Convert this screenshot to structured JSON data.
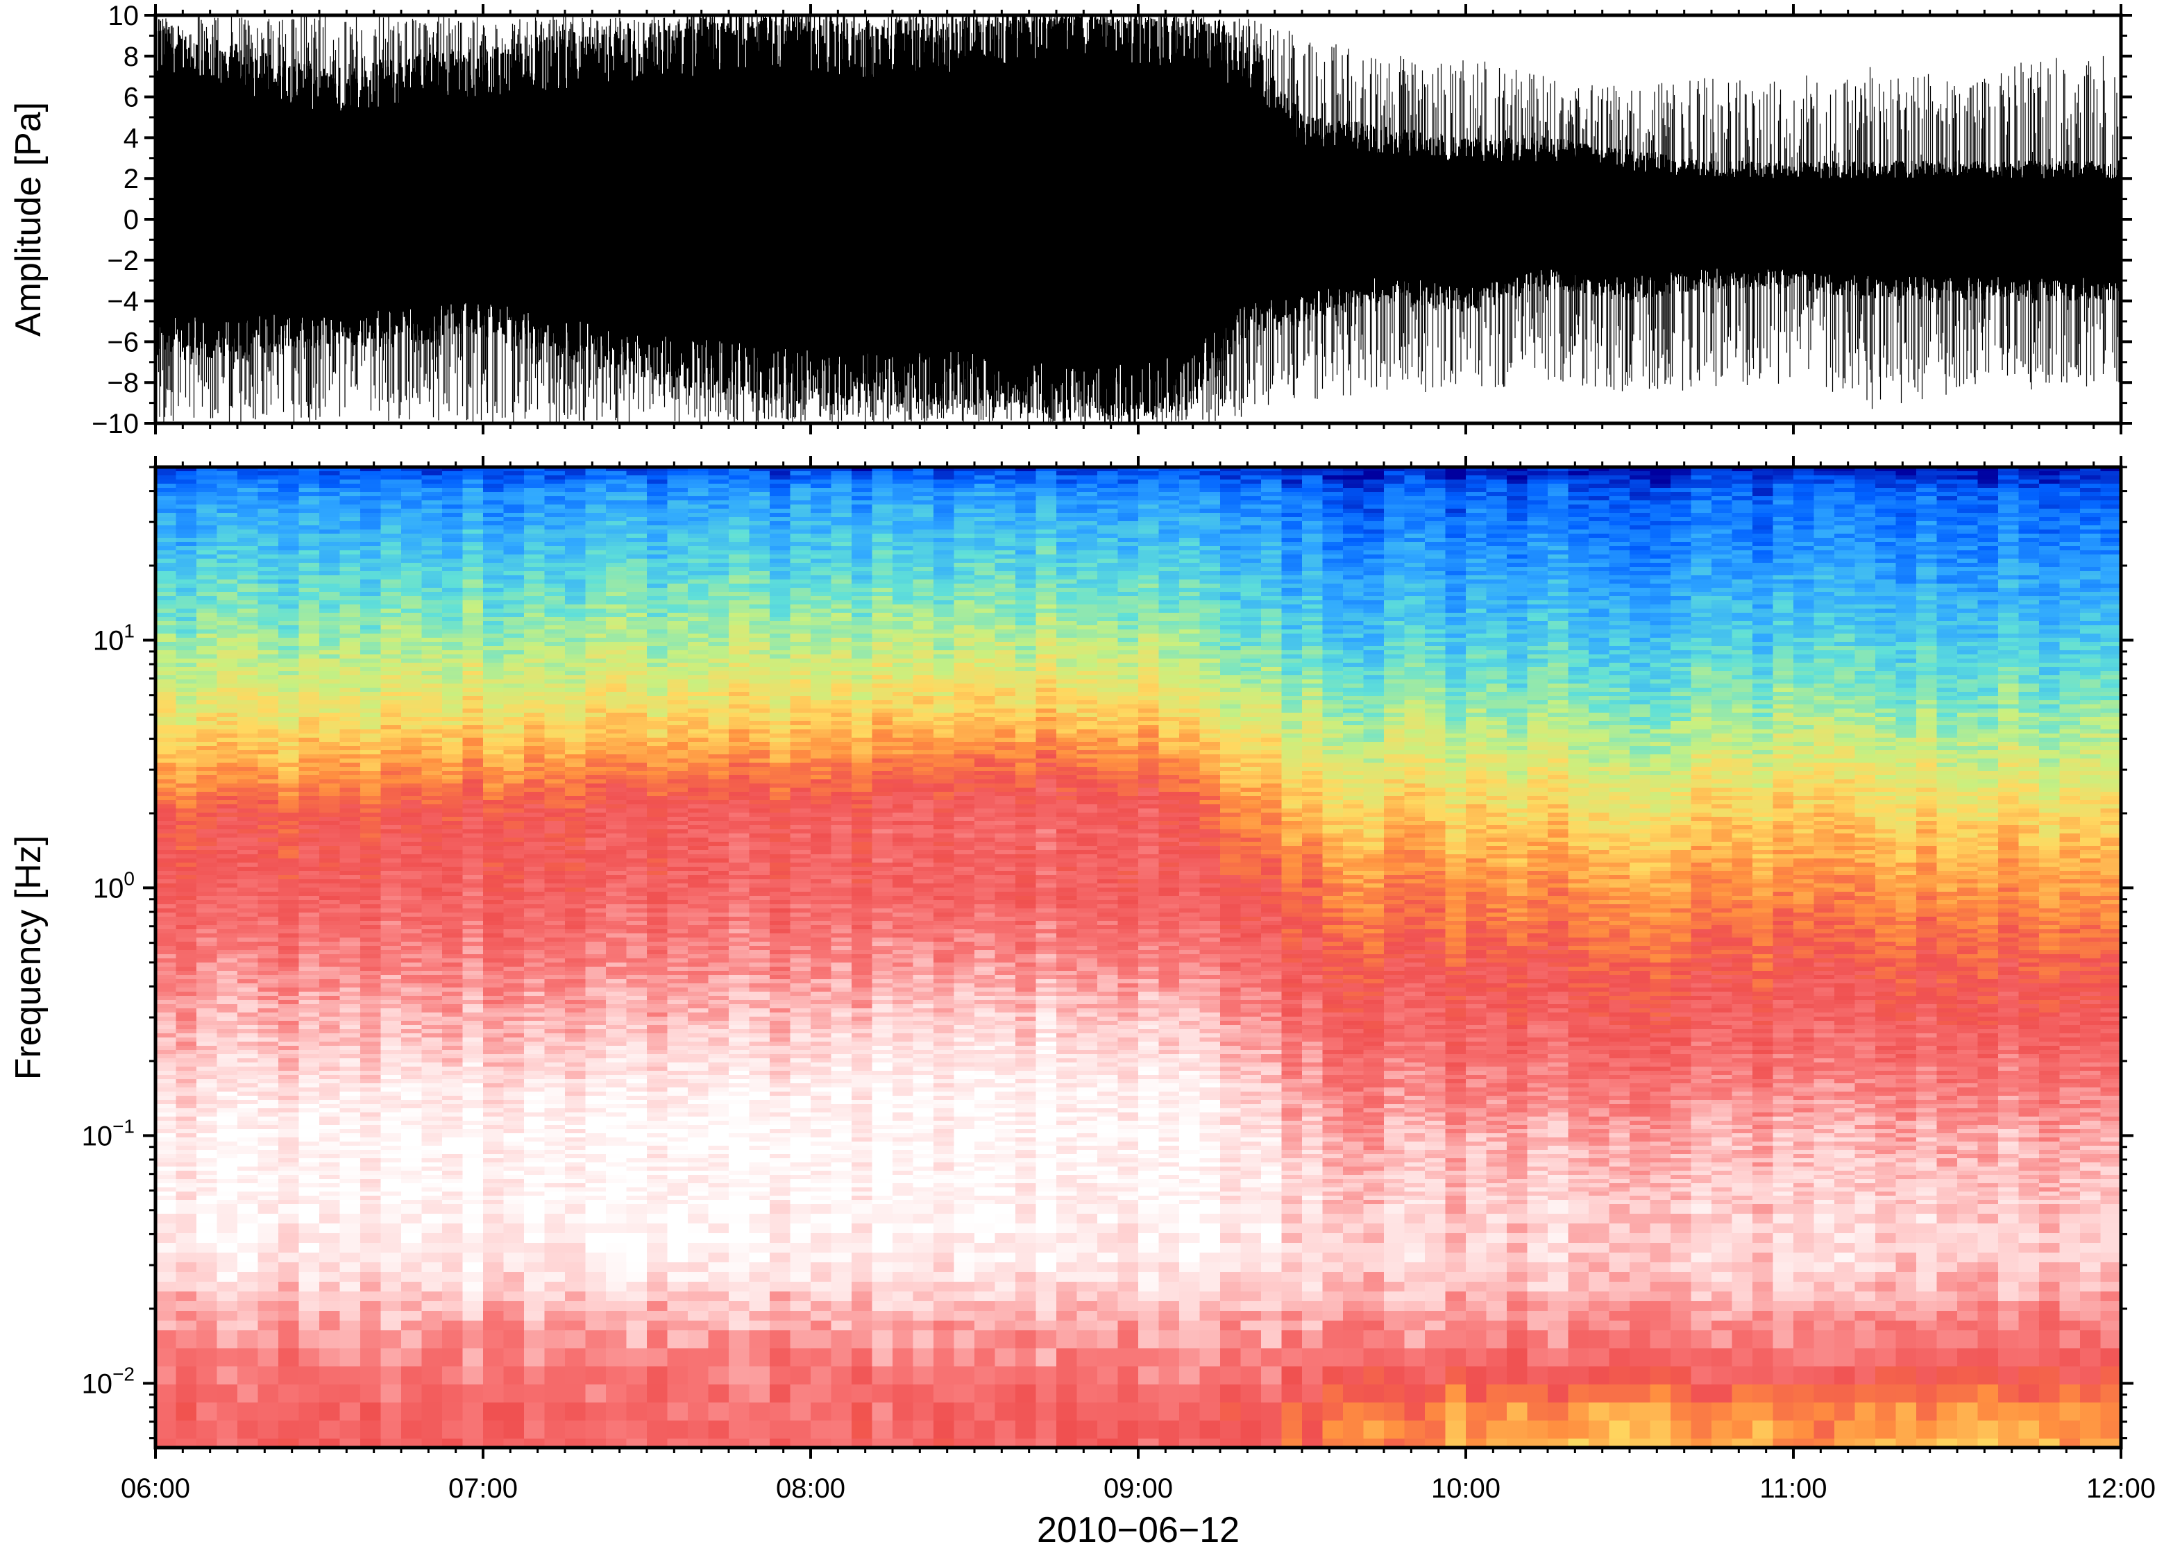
{
  "figure_date_label": "2010−06−12",
  "chart_data": [
    {
      "type": "line",
      "panel": "waveform",
      "title": "",
      "xlabel": "",
      "ylabel": "Amplitude [Pa]",
      "ylim": [
        -10,
        10
      ],
      "y_tick_values": [
        -10,
        -8,
        -6,
        -4,
        -2,
        0,
        2,
        4,
        6,
        8,
        10
      ],
      "y_tick_labels": [
        "−10",
        "−8",
        "−6",
        "−4",
        "−2",
        "0",
        "2",
        "4",
        "6",
        "8",
        "10"
      ],
      "x_start": "2010-06-12T06:00",
      "x_end": "2010-06-12T12:00",
      "grid": false,
      "color": "#000000",
      "envelope": {
        "time": [
          "06:00",
          "06:15",
          "06:30",
          "06:45",
          "07:00",
          "07:15",
          "07:30",
          "07:45",
          "08:00",
          "08:15",
          "08:30",
          "08:45",
          "09:00",
          "09:10",
          "09:20",
          "09:30",
          "09:45",
          "10:00",
          "10:15",
          "10:30",
          "10:45",
          "11:00",
          "11:15",
          "11:30",
          "11:45",
          "12:00"
        ],
        "dense_upper": [
          8.5,
          7.5,
          6.5,
          7.0,
          7.5,
          8.0,
          8.5,
          9.0,
          9.0,
          8.5,
          9.0,
          9.5,
          9.5,
          9.0,
          8.0,
          4.5,
          4.0,
          3.5,
          3.5,
          3.0,
          2.5,
          2.5,
          2.5,
          2.5,
          2.5,
          2.5
        ],
        "dense_lower": [
          -6.0,
          -6.0,
          -5.5,
          -5.5,
          -5.0,
          -6.0,
          -7.0,
          -7.5,
          -8.0,
          -8.0,
          -8.0,
          -8.5,
          -9.0,
          -8.0,
          -5.0,
          -4.5,
          -3.5,
          -4.0,
          -3.0,
          -3.5,
          -3.0,
          -3.0,
          -3.5,
          -3.5,
          -3.5,
          -3.5
        ],
        "spike_max": [
          10,
          10,
          10,
          10,
          10,
          10,
          10,
          10,
          10,
          10,
          10,
          10,
          10,
          10,
          10,
          9.0,
          8.0,
          8.0,
          7.0,
          6.5,
          7.0,
          7.0,
          7.5,
          7.0,
          8.0,
          8.0
        ],
        "spike_min": [
          -10,
          -10,
          -10,
          -10,
          -10,
          -10,
          -10,
          -10,
          -10,
          -10,
          -10,
          -10,
          -10,
          -10,
          -10,
          -9.0,
          -8.5,
          -8.5,
          -8.0,
          -8.5,
          -8.5,
          -8.0,
          -9.5,
          -8.5,
          -8.5,
          -8.0
        ]
      }
    },
    {
      "type": "heatmap",
      "panel": "spectrogram",
      "title": "",
      "xlabel": "2010−06−12",
      "ylabel": "Frequency [Hz]",
      "y_scale": "log",
      "ylim_hz": [
        0.0055,
        50
      ],
      "y_tick_values": [
        0.01,
        0.1,
        1,
        10
      ],
      "y_tick_labels": [
        {
          "base": "10",
          "exp": "−2"
        },
        {
          "base": "10",
          "exp": "−1"
        },
        {
          "base": "10",
          "exp": "0"
        },
        {
          "base": "10",
          "exp": "1"
        }
      ],
      "x_tick_labels": [
        "06:00",
        "07:00",
        "08:00",
        "09:00",
        "10:00",
        "11:00",
        "12:00"
      ],
      "x_start": "2010-06-12T06:00",
      "x_end": "2010-06-12T12:00",
      "colormap": [
        "#00009f",
        "#0060ff",
        "#30a8ff",
        "#60e0d8",
        "#c8f080",
        "#ffd860",
        "#ff9040",
        "#f05050",
        "#f87878",
        "#ffd0d0",
        "#ffffff"
      ],
      "color_level_meaning": "0 = lowest power (dark blue), 10 = white",
      "time": [
        "06:00",
        "06:30",
        "07:00",
        "07:30",
        "08:00",
        "08:30",
        "09:00",
        "09:15",
        "09:30",
        "10:00",
        "10:30",
        "11:00",
        "11:30",
        "12:00"
      ],
      "freq_hz": [
        50,
        40,
        20,
        10,
        5,
        3,
        2,
        1,
        0.5,
        0.3,
        0.15,
        0.1,
        0.05,
        0.03,
        0.02,
        0.012,
        0.008,
        0.0055
      ],
      "levels": [
        [
          0.6,
          0.6,
          0.6,
          0.6,
          0.6,
          0.6,
          0.6,
          0.3,
          0.2,
          0.1,
          0.1,
          0.1,
          0.1,
          0.1
        ],
        [
          1.6,
          1.6,
          1.6,
          1.8,
          1.8,
          1.8,
          1.8,
          1.5,
          1.2,
          1.0,
          1.0,
          1.0,
          1.0,
          1.0
        ],
        [
          2.6,
          2.6,
          2.7,
          2.8,
          2.8,
          2.9,
          2.9,
          2.4,
          2.0,
          1.8,
          1.8,
          1.8,
          1.8,
          1.8
        ],
        [
          3.6,
          3.6,
          3.7,
          3.8,
          3.8,
          3.9,
          3.9,
          3.2,
          2.8,
          2.6,
          2.6,
          2.6,
          2.6,
          2.6
        ],
        [
          4.6,
          4.6,
          4.8,
          4.9,
          5.0,
          5.2,
          5.2,
          4.4,
          3.9,
          3.6,
          3.5,
          3.6,
          3.5,
          3.6
        ],
        [
          5.6,
          5.7,
          6.0,
          6.2,
          6.2,
          6.6,
          6.7,
          5.4,
          4.7,
          4.4,
          4.3,
          4.4,
          4.3,
          4.4
        ],
        [
          6.8,
          6.8,
          7.1,
          7.3,
          7.4,
          7.6,
          7.6,
          6.4,
          5.4,
          5.0,
          4.9,
          5.0,
          4.9,
          5.0
        ],
        [
          7.3,
          7.3,
          7.4,
          7.4,
          7.5,
          7.5,
          7.4,
          7.2,
          6.4,
          6.0,
          5.9,
          5.9,
          5.9,
          5.9
        ],
        [
          8.0,
          8.0,
          8.0,
          8.1,
          8.2,
          8.3,
          8.2,
          7.8,
          7.2,
          6.9,
          6.8,
          6.8,
          6.8,
          6.8
        ],
        [
          8.5,
          8.6,
          8.6,
          8.7,
          8.9,
          9.1,
          9.0,
          8.6,
          7.6,
          7.4,
          7.3,
          7.3,
          7.3,
          7.3
        ],
        [
          9.2,
          9.4,
          9.5,
          9.6,
          9.7,
          9.8,
          9.8,
          9.4,
          8.3,
          8.0,
          8.0,
          8.0,
          8.0,
          8.0
        ],
        [
          9.6,
          9.8,
          9.9,
          9.9,
          9.9,
          9.9,
          9.9,
          9.7,
          8.8,
          8.6,
          8.6,
          8.6,
          8.6,
          8.6
        ],
        [
          9.6,
          9.7,
          9.8,
          9.8,
          9.8,
          9.8,
          9.8,
          9.6,
          9.2,
          9.0,
          9.0,
          9.0,
          9.0,
          9.0
        ],
        [
          9.4,
          9.4,
          9.5,
          9.6,
          9.6,
          9.6,
          9.6,
          9.4,
          9.2,
          9.1,
          9.0,
          9.1,
          9.0,
          9.0
        ],
        [
          8.6,
          8.7,
          8.8,
          8.8,
          8.8,
          8.8,
          8.8,
          8.7,
          8.6,
          8.5,
          8.4,
          8.4,
          8.3,
          8.2
        ],
        [
          7.8,
          7.9,
          7.9,
          8.0,
          8.0,
          8.0,
          8.0,
          7.9,
          7.8,
          7.6,
          7.6,
          7.6,
          7.5,
          7.4
        ],
        [
          7.5,
          7.5,
          7.6,
          7.7,
          7.7,
          7.6,
          7.6,
          7.4,
          6.8,
          6.0,
          5.8,
          6.2,
          5.9,
          6.3
        ],
        [
          7.4,
          7.4,
          7.5,
          7.6,
          7.6,
          7.5,
          7.5,
          7.2,
          6.5,
          5.6,
          5.2,
          5.8,
          5.4,
          6.0
        ]
      ]
    }
  ]
}
